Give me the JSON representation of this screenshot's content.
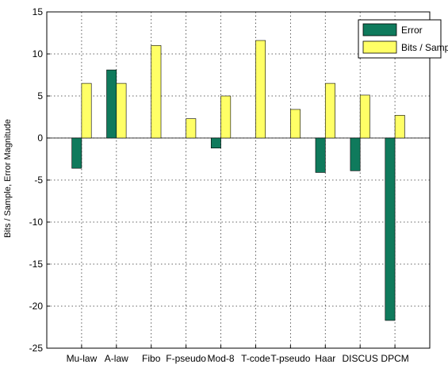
{
  "chart_data": {
    "type": "bar",
    "title": "",
    "xlabel": "",
    "ylabel": "Bits / Sample, Error Magnitude",
    "categories": [
      "Mu-law",
      "A-law",
      "Fibo",
      "F-pseudo",
      "Mod-8",
      "T-code",
      "T-pseudo",
      "Haar",
      "DISCUS",
      "DPCM"
    ],
    "series": [
      {
        "name": "Error",
        "color": "#0f7a5c",
        "values": [
          -3.6,
          8.1,
          0,
          0,
          -1.2,
          0,
          0,
          -4.1,
          -3.9,
          -21.7
        ]
      },
      {
        "name": "Bits / Sample",
        "color": "#ffff66",
        "values": [
          6.5,
          6.5,
          11.0,
          2.3,
          5.0,
          11.6,
          3.4,
          6.5,
          5.1,
          2.7
        ]
      }
    ],
    "ylim": [
      -25,
      15
    ],
    "yticks": [
      15,
      10,
      5,
      0,
      -5,
      -10,
      -15,
      -20,
      -25
    ],
    "grid": true,
    "legend_position": "top-right"
  }
}
